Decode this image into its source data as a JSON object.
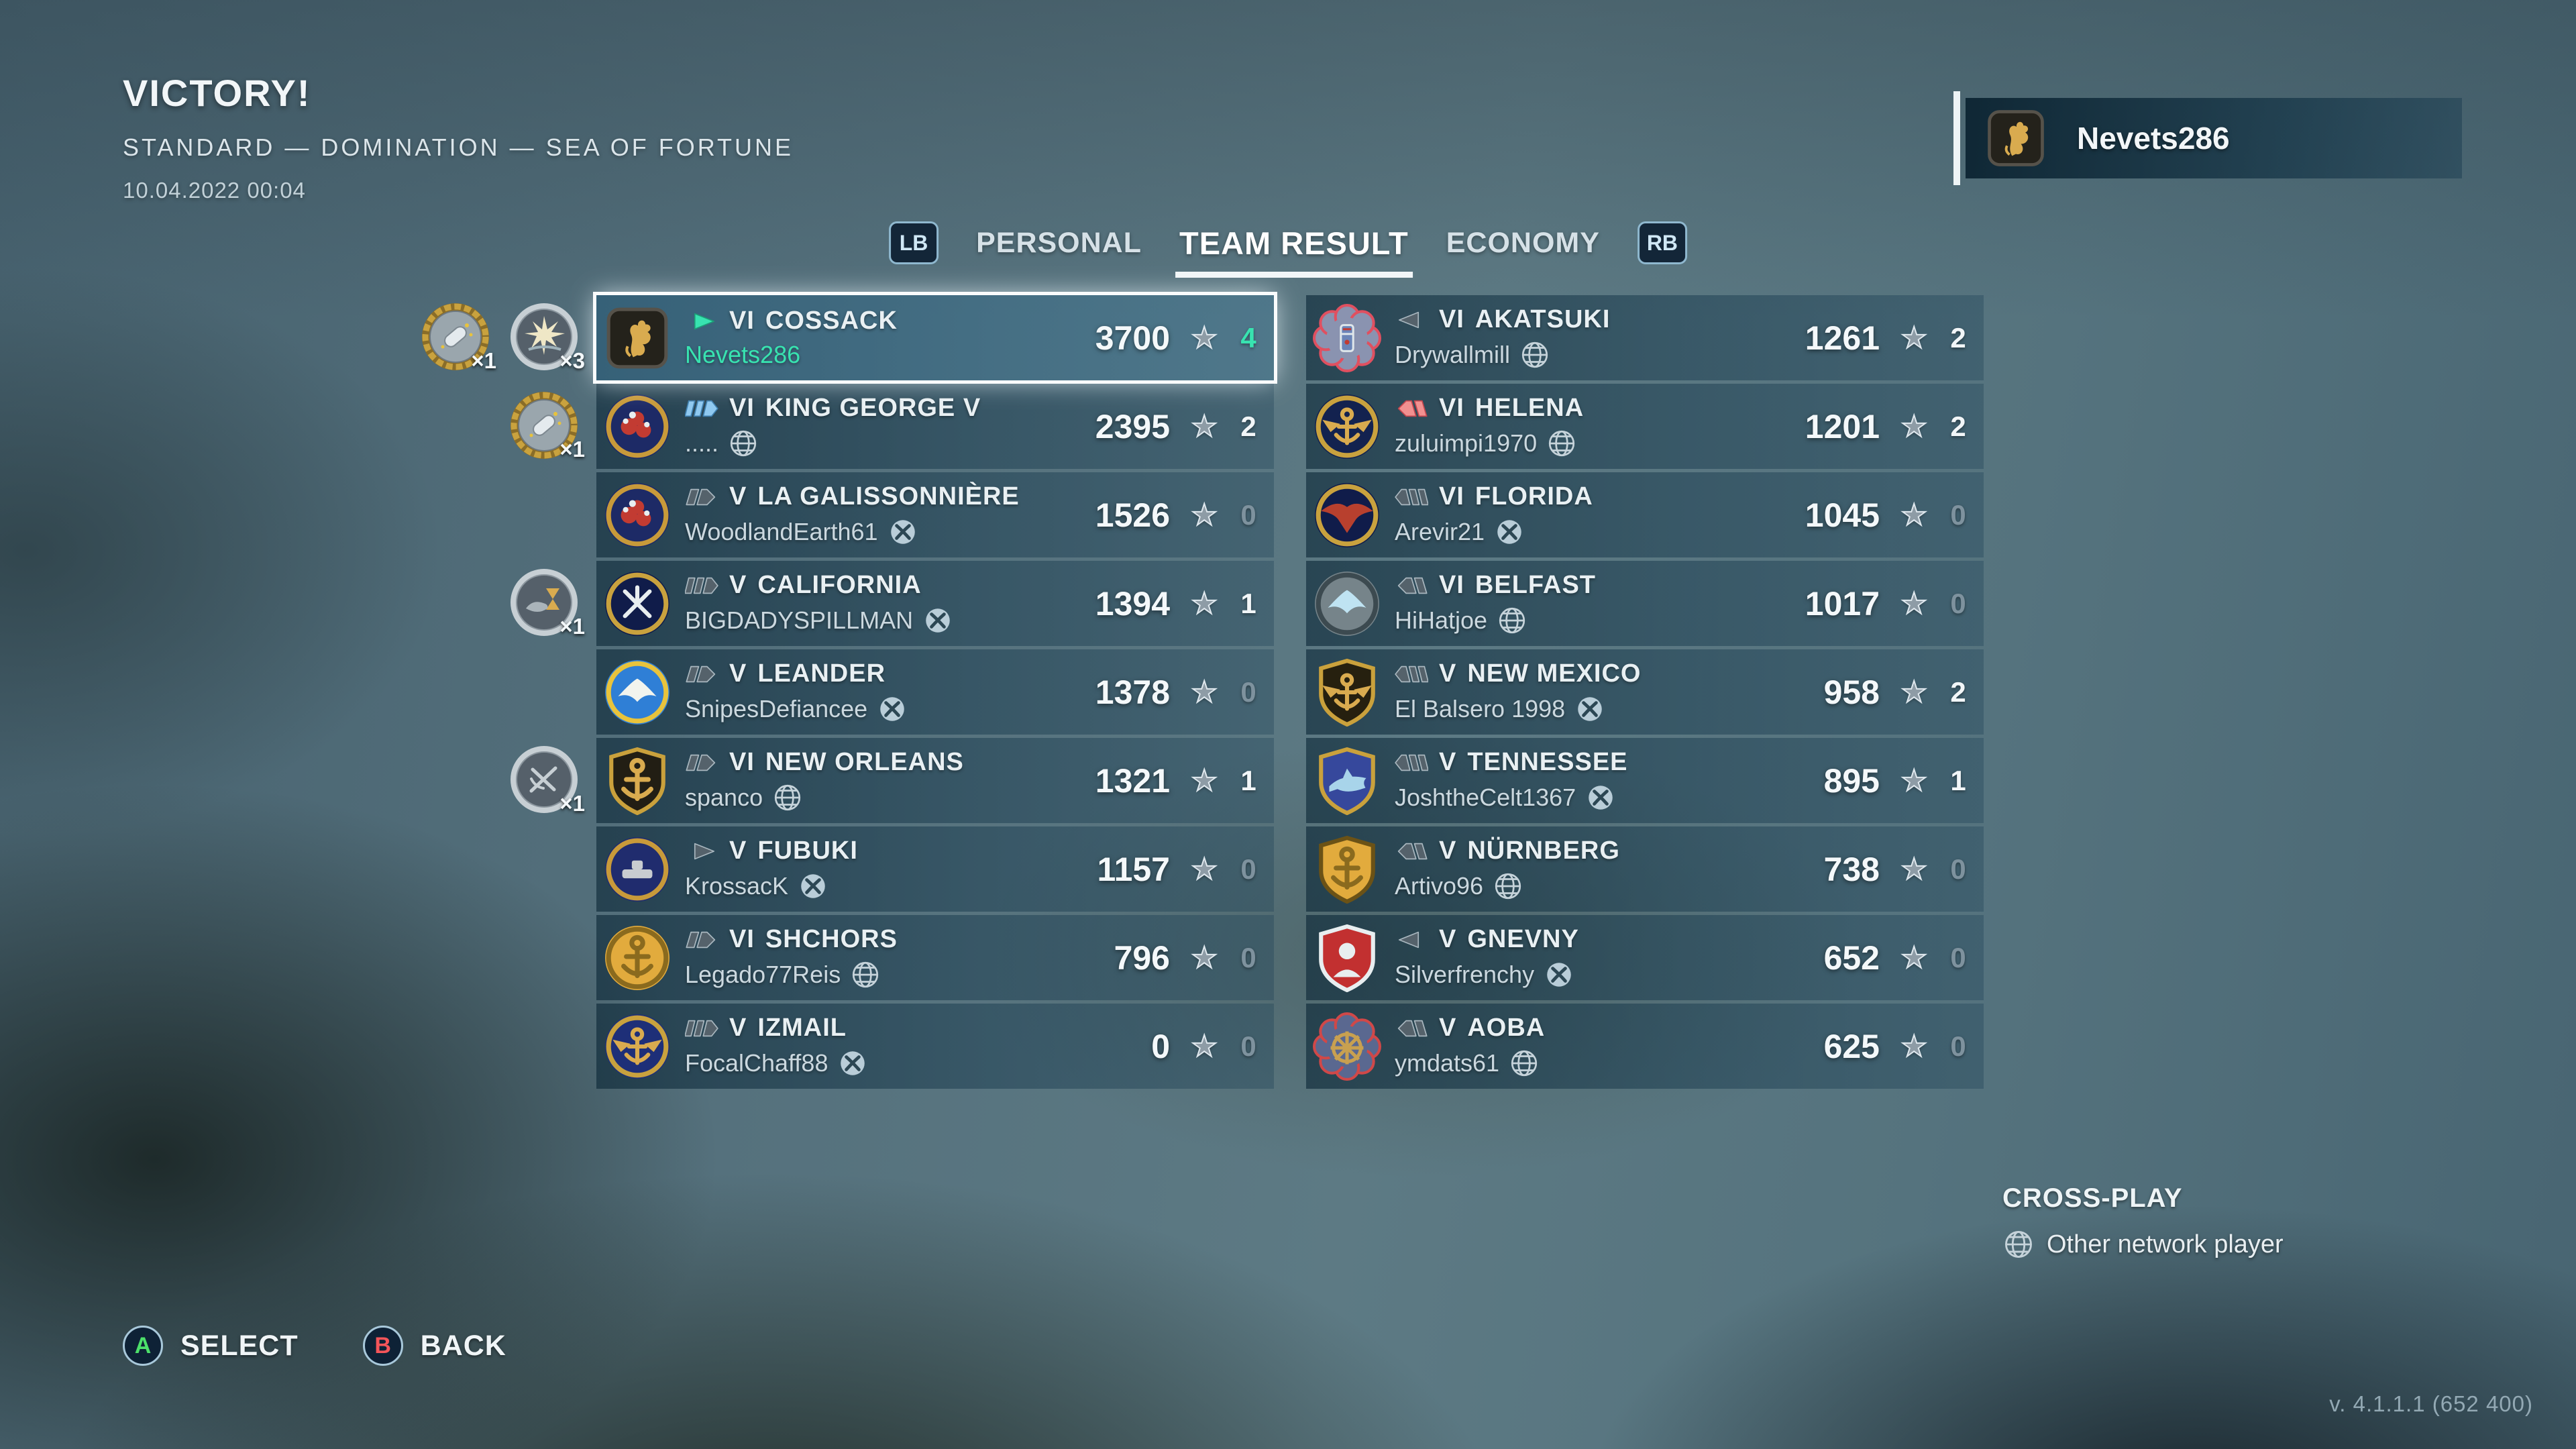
{
  "title_block": {
    "result": "VICTORY!",
    "mode_line": "STANDARD — DOMINATION — SEA OF FORTUNE",
    "timestamp": "10.04.2022 00:04"
  },
  "player_banner": {
    "name": "Nevets286"
  },
  "tab_bar": {
    "lb_label": "LB",
    "rb_label": "RB",
    "tabs": [
      {
        "label": "PERSONAL",
        "active": false
      },
      {
        "label": "TEAM RESULT",
        "active": true
      },
      {
        "label": "ECONOMY",
        "active": false
      }
    ]
  },
  "icons": {
    "star": "★"
  },
  "colors": {
    "accent_teal": "#38e3b0",
    "division_blue": "#8fc9f0",
    "enemy_red": "#f29090",
    "tab_underline": "#f2f6f8"
  },
  "teams": {
    "allies": [
      {
        "tier": "VI",
        "ship": "COSSACK",
        "player": "Nevets286",
        "network": "none",
        "ship_class": "dd",
        "class_color": "teal",
        "score": "3700",
        "frags": "4",
        "frag_style": "accent",
        "highlighted": true,
        "emblem": {
          "shape": "square",
          "motif": "lion",
          "motif_color": "#d9ab4f"
        },
        "medals": [
          {
            "type": "shell-gold",
            "count": "×1"
          },
          {
            "type": "burst-silver",
            "count": "×3"
          }
        ]
      },
      {
        "tier": "VI",
        "ship": "KING GEORGE V",
        "player": ".....",
        "network": "globe",
        "ship_class": "bb",
        "class_color": "blue",
        "score": "2395",
        "frags": "2",
        "frag_style": "normal",
        "highlighted": false,
        "emblem": {
          "shape": "circle",
          "base": "#1d2a66",
          "ring": "#c89a3a",
          "motif": "figures",
          "motif_color": "#c23b32"
        },
        "medals": [
          {
            "type": "shell-gold",
            "count": "×1"
          }
        ]
      },
      {
        "tier": "V",
        "ship": "LA GALISSONNIÈRE",
        "player": "WoodlandEarth61",
        "network": "xbox",
        "ship_class": "ca",
        "class_color": "gray",
        "score": "1526",
        "frags": "0",
        "frag_style": "dim",
        "highlighted": false,
        "emblem": {
          "shape": "circle",
          "base": "#1d2a66",
          "ring": "#c89a3a",
          "motif": "figures",
          "motif_color": "#c23b32"
        },
        "medals": []
      },
      {
        "tier": "V",
        "ship": "CALIFORNIA",
        "player": "BIGDADYSPILLMAN",
        "network": "xbox",
        "ship_class": "bb",
        "class_color": "gray",
        "score": "1394",
        "frags": "1",
        "frag_style": "normal",
        "highlighted": false,
        "emblem": {
          "shape": "circle",
          "base": "#101c4a",
          "ring": "#c9a23e",
          "motif": "swords",
          "motif_color": "#e8eef0"
        },
        "medals": [
          {
            "type": "hourglass-silver",
            "count": "×1"
          }
        ]
      },
      {
        "tier": "V",
        "ship": "LEANDER",
        "player": "SnipesDefiancee",
        "network": "xbox",
        "ship_class": "ca",
        "class_color": "gray",
        "score": "1378",
        "frags": "0",
        "frag_style": "dim",
        "highlighted": false,
        "emblem": {
          "shape": "circle",
          "base": "#2f7fd6",
          "ring": "#e8c33c",
          "motif": "bird",
          "motif_color": "#f2f4ee"
        },
        "medals": []
      },
      {
        "tier": "VI",
        "ship": "NEW ORLEANS",
        "player": "spanco",
        "network": "globe",
        "ship_class": "ca",
        "class_color": "gray",
        "score": "1321",
        "frags": "1",
        "frag_style": "normal",
        "highlighted": false,
        "emblem": {
          "shape": "shield",
          "base": "#221e14",
          "ring": "#caa13c",
          "motif": "anchor",
          "motif_color": "#d9ab4f"
        },
        "medals": [
          {
            "type": "tools-silver",
            "count": "×1"
          }
        ]
      },
      {
        "tier": "V",
        "ship": "FUBUKI",
        "player": "KrossacK",
        "network": "xbox",
        "ship_class": "dd",
        "class_color": "gray",
        "score": "1157",
        "frags": "0",
        "frag_style": "dim",
        "highlighted": false,
        "emblem": {
          "shape": "circle",
          "base": "#202c6e",
          "ring": "#c89a3a",
          "motif": "ship",
          "motif_color": "#c8ccd0"
        },
        "medals": []
      },
      {
        "tier": "VI",
        "ship": "SHCHORS",
        "player": "Legado77Reis",
        "network": "globe",
        "ship_class": "ca",
        "class_color": "gray",
        "score": "796",
        "frags": "0",
        "frag_style": "dim",
        "highlighted": false,
        "emblem": {
          "shape": "circle",
          "base": "#e2ab3d",
          "ring": "#8a6a1e",
          "motif": "anchor",
          "motif_color": "#8a6a1e"
        },
        "medals": []
      },
      {
        "tier": "V",
        "ship": "IZMAIL",
        "player": "FocalChaff88",
        "network": "xbox",
        "ship_class": "bb",
        "class_color": "gray",
        "score": "0",
        "frags": "0",
        "frag_style": "dim",
        "highlighted": false,
        "emblem": {
          "shape": "circle",
          "base": "#1e2f78",
          "ring": "#c9a23e",
          "motif": "winged",
          "motif_color": "#d9ab4f"
        },
        "medals": []
      }
    ],
    "enemies": [
      {
        "tier": "VI",
        "ship": "AKATSUKI",
        "player": "Drywallmill",
        "network": "globe",
        "ship_class": "dd",
        "class_color": "gray",
        "score": "1261",
        "frags": "2",
        "frag_style": "normal",
        "highlighted": false,
        "emblem": {
          "shape": "flower",
          "base": "#8a93b0",
          "ring": "#e05060",
          "motif": "shieldlet",
          "motif_color": "#6b85b8"
        },
        "medals": []
      },
      {
        "tier": "VI",
        "ship": "HELENA",
        "player": "zuluimpi1970",
        "network": "globe",
        "ship_class": "ca",
        "class_color": "red",
        "score": "1201",
        "frags": "2",
        "frag_style": "normal",
        "highlighted": false,
        "emblem": {
          "shape": "circle",
          "base": "#13224f",
          "ring": "#c9a23e",
          "motif": "winged",
          "motif_color": "#d9ab4f"
        },
        "medals": []
      },
      {
        "tier": "VI",
        "ship": "FLORIDA",
        "player": "Arevir21",
        "network": "xbox",
        "ship_class": "bb",
        "class_color": "gray",
        "score": "1045",
        "frags": "0",
        "frag_style": "dim",
        "highlighted": false,
        "emblem": {
          "shape": "circle",
          "base": "#101c4a",
          "ring": "#c9a23e",
          "motif": "eagle",
          "motif_color": "#b8402e"
        },
        "medals": []
      },
      {
        "tier": "VI",
        "ship": "BELFAST",
        "player": "HiHatjoe",
        "network": "globe",
        "ship_class": "ca",
        "class_color": "gray",
        "score": "1017",
        "frags": "0",
        "frag_style": "dim",
        "highlighted": false,
        "emblem": {
          "shape": "circle",
          "base": "#76848a",
          "ring": "#3c4a50",
          "motif": "bird",
          "motif_color": "#bfe3f2"
        },
        "medals": []
      },
      {
        "tier": "V",
        "ship": "NEW MEXICO",
        "player": "El Balsero 1998",
        "network": "xbox",
        "ship_class": "bb",
        "class_color": "gray",
        "score": "958",
        "frags": "2",
        "frag_style": "normal",
        "highlighted": false,
        "emblem": {
          "shape": "shield",
          "base": "#26200f",
          "ring": "#caa13c",
          "motif": "winged",
          "motif_color": "#d9ab4f"
        },
        "medals": []
      },
      {
        "tier": "V",
        "ship": "TENNESSEE",
        "player": "JoshtheCelt1367",
        "network": "xbox",
        "ship_class": "bb",
        "class_color": "gray",
        "score": "895",
        "frags": "1",
        "frag_style": "normal",
        "highlighted": false,
        "emblem": {
          "shape": "shield",
          "base": "#36489c",
          "ring": "#caa13c",
          "motif": "shark",
          "motif_color": "#a8d4ea"
        },
        "medals": []
      },
      {
        "tier": "V",
        "ship": "NÜRNBERG",
        "player": "Artivo96",
        "network": "globe",
        "ship_class": "ca",
        "class_color": "gray",
        "score": "738",
        "frags": "0",
        "frag_style": "dim",
        "highlighted": false,
        "emblem": {
          "shape": "shield",
          "base": "#e2ab3d",
          "ring": "#6b5216",
          "motif": "anchor",
          "motif_color": "#8a6a1e"
        },
        "medals": []
      },
      {
        "tier": "V",
        "ship": "GNEVNY",
        "player": "Silverfrenchy",
        "network": "xbox",
        "ship_class": "dd",
        "class_color": "gray",
        "score": "652",
        "frags": "0",
        "frag_style": "dim",
        "highlighted": false,
        "emblem": {
          "shape": "shield",
          "base": "#c23030",
          "ring": "#e8eef0",
          "motif": "portrait",
          "motif_color": "#e8eef0"
        },
        "medals": []
      },
      {
        "tier": "V",
        "ship": "AOBA",
        "player": "ymdats61",
        "network": "globe",
        "ship_class": "ca",
        "class_color": "gray",
        "score": "625",
        "frags": "0",
        "frag_style": "dim",
        "highlighted": false,
        "emblem": {
          "shape": "flower",
          "base": "#5a6890",
          "ring": "#d04848",
          "motif": "wheel",
          "motif_color": "#c8a050"
        },
        "medals": []
      }
    ]
  },
  "cross_play": {
    "title": "CROSS-PLAY",
    "legend": "Other network player"
  },
  "footer": {
    "a_label": "A",
    "select_label": "SELECT",
    "b_label": "B",
    "back_label": "BACK"
  },
  "version": "v. 4.1.1.1 (652 400)"
}
